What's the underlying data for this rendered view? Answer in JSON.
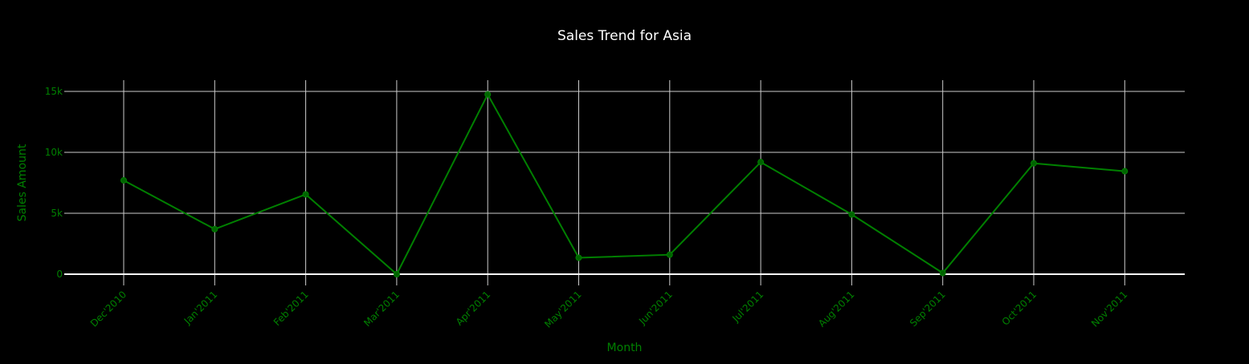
{
  "chart_data": {
    "type": "line",
    "title": "Sales Trend for Asia",
    "xlabel": "Month",
    "ylabel": "Sales Amount",
    "categories": [
      "Dec'2010",
      "Jan'2011",
      "Feb'2011",
      "Mar'2011",
      "Apr'2011",
      "May'2011",
      "Jun'2011",
      "Jul'2011",
      "Aug'2011",
      "Sep'2011",
      "Oct'2011",
      "Nov'2011"
    ],
    "series": [
      {
        "values": [
          7700,
          3700,
          6550,
          0,
          14750,
          1350,
          1600,
          9200,
          4900,
          100,
          9100,
          8450
        ]
      }
    ],
    "ylim": [
      -800,
      15000
    ],
    "yticks": [
      0,
      5000,
      10000,
      15000
    ],
    "ytick_labels": [
      "0",
      "5k",
      "10k",
      "15k"
    ],
    "grid": true,
    "legend": "none",
    "colors": {
      "background": "#000000",
      "line": "#008000",
      "marker": "#006400",
      "axis_text": "#008000",
      "title": "#ffffff",
      "grid": "#cccccc",
      "zero_line": "#ffffff"
    }
  }
}
